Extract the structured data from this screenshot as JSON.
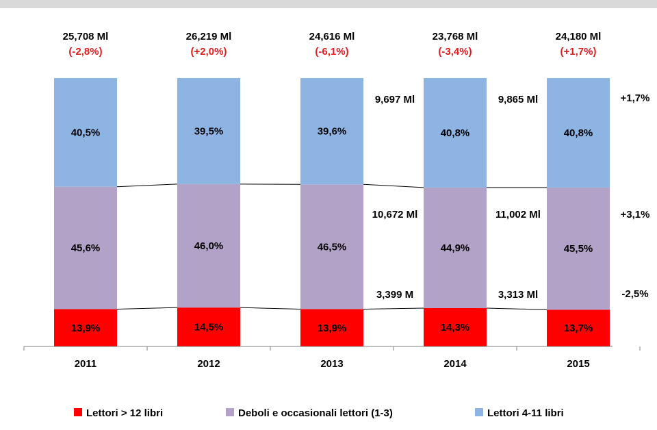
{
  "colors": {
    "top_band": "#d9d9d9",
    "strong_readers": "#ff0000",
    "weak_readers": "#b3a2c7",
    "medium_readers": "#8eb4e3",
    "axis": "#808080",
    "connector": "#000000",
    "change_label": "#e31a1c"
  },
  "chart_data": {
    "type": "bar",
    "stacked": true,
    "stacking": "percent",
    "categories": [
      "2011",
      "2012",
      "2013",
      "2014",
      "2015"
    ],
    "series": [
      {
        "name": "Lettori > 12 libri",
        "color": "#ff0000",
        "values": [
          13.9,
          14.5,
          13.9,
          14.3,
          13.7
        ],
        "labels": [
          "13,9%",
          "14,5%",
          "13,9%",
          "14,3%",
          "13,7%"
        ]
      },
      {
        "name": "Deboli e occasionali lettori (1-3)",
        "color": "#b3a2c7",
        "values": [
          45.6,
          46.0,
          46.5,
          44.9,
          45.5
        ],
        "labels": [
          "45,6%",
          "46,0%",
          "46,5%",
          "44,9%",
          "45,5%"
        ]
      },
      {
        "name": "Lettori 4-11 libri",
        "color": "#8eb4e3",
        "values": [
          40.5,
          39.5,
          39.6,
          40.8,
          40.8
        ],
        "labels": [
          "40,5%",
          "39,5%",
          "39,6%",
          "40,8%",
          "40,8%"
        ]
      }
    ],
    "totals": [
      "25,708 Ml",
      "26,219 Ml",
      "24,616 Ml",
      "23,768 Ml",
      "24,180 Ml"
    ],
    "total_changes": [
      "(-2,8%)",
      "(+2,0%)",
      "(-6,1%)",
      "(-3,4%)",
      "(+1,7%)"
    ],
    "absolute_annotations": [
      {
        "series": 2,
        "category": 2,
        "text": "9,697 Ml"
      },
      {
        "series": 2,
        "category": 3,
        "text": "9,865 Ml"
      },
      {
        "series": 1,
        "category": 2,
        "text": "10,672 Ml"
      },
      {
        "series": 1,
        "category": 3,
        "text": "11,002 Ml"
      },
      {
        "series": 0,
        "category": 2,
        "text": "3,399 M"
      },
      {
        "series": 0,
        "category": 3,
        "text": "3,313 Ml"
      }
    ],
    "series_changes": [
      {
        "series": 2,
        "text": "+1,7%"
      },
      {
        "series": 1,
        "text": "+3,1%"
      },
      {
        "series": 0,
        "text": "-2,5%"
      }
    ],
    "ylim": [
      0,
      100
    ],
    "grid": false,
    "legend_position": "bottom",
    "title": "",
    "xlabel": "",
    "ylabel": ""
  }
}
